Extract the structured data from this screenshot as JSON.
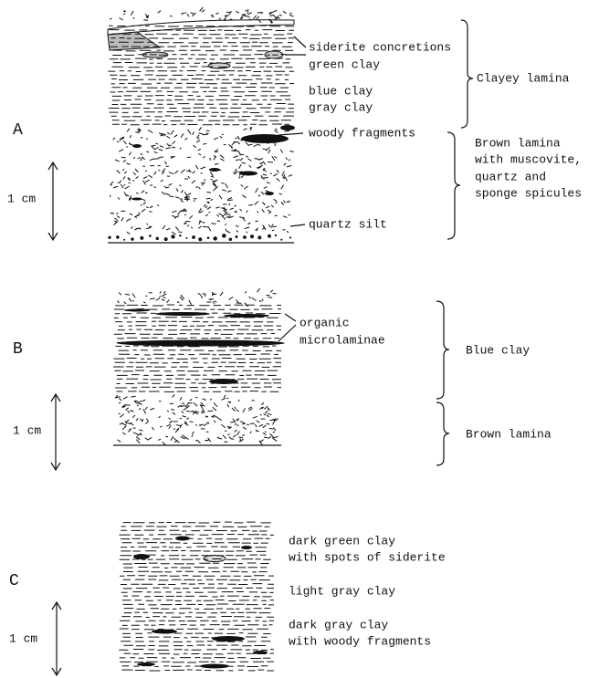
{
  "panels": [
    {
      "letter": "A",
      "scale": "1 cm",
      "labels": [
        "siderite concretions",
        "green clay",
        "blue clay",
        "gray clay",
        "woody fragments",
        "quartz silt"
      ],
      "brackets": [
        {
          "lines": [
            "Clayey lamina"
          ]
        },
        {
          "lines": [
            "Brown lamina",
            "with muscovite,",
            "quartz and",
            "sponge spicules"
          ]
        }
      ]
    },
    {
      "letter": "B",
      "scale": "1 cm",
      "labels": [
        "organic",
        "microlaminae"
      ],
      "brackets": [
        {
          "lines": [
            "Blue clay"
          ]
        },
        {
          "lines": [
            "Brown lamina"
          ]
        }
      ]
    },
    {
      "letter": "C",
      "scale": "1 cm",
      "labels": [
        "dark green clay",
        "with spots of siderite",
        "light gray clay",
        "dark gray clay",
        "with woody fragments"
      ],
      "brackets": []
    }
  ]
}
